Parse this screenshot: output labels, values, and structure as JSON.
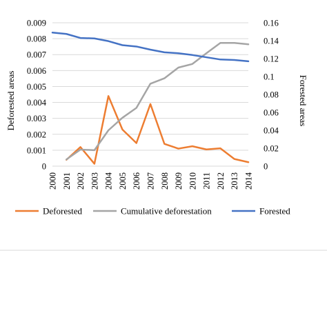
{
  "chart_data": {
    "type": "line",
    "x": [
      "2000",
      "2001",
      "2002",
      "2003",
      "2004",
      "2005",
      "2006",
      "2007",
      "2008",
      "2009",
      "2010",
      "2011",
      "2012",
      "2013",
      "2014"
    ],
    "series": [
      {
        "name": "Deforested",
        "axis": "left",
        "color": "#ED7D31",
        "values": [
          null,
          0.0004,
          0.0012,
          0.00015,
          0.0044,
          0.0023,
          0.00145,
          0.0039,
          0.0014,
          0.0011,
          0.00125,
          0.00105,
          0.00112,
          0.00045,
          0.00025
        ]
      },
      {
        "name": "Cumulative deforestation",
        "axis": "right",
        "color": "#A5A5A5",
        "values": [
          null,
          0.0075,
          0.0185,
          0.0178,
          0.04,
          0.054,
          0.065,
          0.092,
          0.098,
          0.11,
          0.114,
          0.126,
          0.1375,
          0.1375,
          0.136
        ]
      },
      {
        "name": "Forested",
        "axis": "right",
        "color": "#4472C4",
        "values": [
          0.149,
          0.1475,
          0.143,
          0.1425,
          0.1395,
          0.135,
          0.1335,
          0.13,
          0.127,
          0.126,
          0.124,
          0.1215,
          0.119,
          0.1185,
          0.117
        ]
      }
    ],
    "ylabel": "Deforested areas",
    "ylabel_right": "Forested areas",
    "ylim": [
      0,
      0.009
    ],
    "ylim_right": [
      0,
      0.16
    ],
    "yticks": [
      "0",
      "0.001",
      "0.002",
      "0.003",
      "0.004",
      "0.005",
      "0.006",
      "0.007",
      "0.008",
      "0.009"
    ],
    "yticks_right": [
      "0",
      "0.02",
      "0.04",
      "0.06",
      "0.08",
      "0.1",
      "0.12",
      "0.14",
      "0.16"
    ],
    "grid": true,
    "legend_position": "bottom"
  }
}
